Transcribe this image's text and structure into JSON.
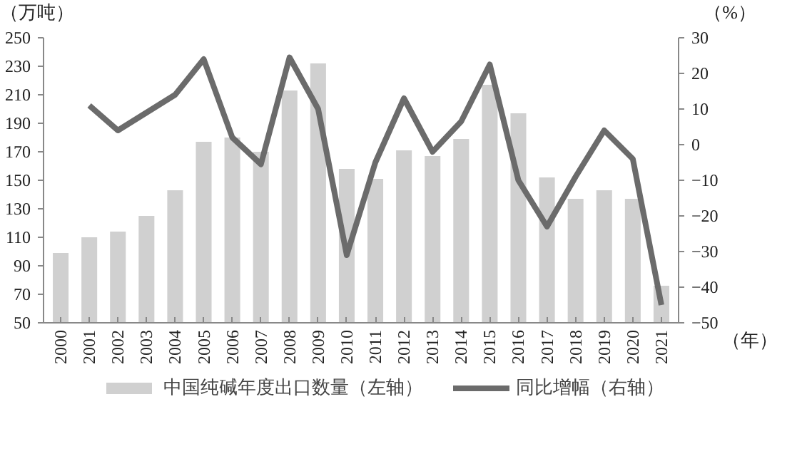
{
  "chart_data": {
    "type": "bar",
    "ylabel": "（万吨）",
    "y2label": "（%）",
    "xlabel": "（年）",
    "categories": [
      "2000",
      "2001",
      "2002",
      "2003",
      "2004",
      "2005",
      "2006",
      "2007",
      "2008",
      "2009",
      "2010",
      "2011",
      "2012",
      "2013",
      "2014",
      "2015",
      "2016",
      "2017",
      "2018",
      "2019",
      "2020",
      "2021"
    ],
    "series": [
      {
        "name": "中国纯碱年度出口数量（左轴）",
        "color": "#d0d0d0",
        "values": [
          99,
          110,
          114,
          125,
          143,
          177,
          180,
          170,
          213,
          232,
          158,
          151,
          171,
          167,
          179,
          217,
          197,
          152,
          137,
          143,
          137,
          76
        ]
      },
      {
        "name": "同比增幅（右轴）",
        "type": "line",
        "axis": "y2",
        "color": "#6b6b6b",
        "values": [
          null,
          11,
          4,
          9,
          14,
          24,
          2,
          -5.5,
          24.5,
          10,
          -31,
          -5,
          13,
          -2,
          6.5,
          22.5,
          -10,
          -23,
          -9,
          4,
          -4,
          -45
        ]
      }
    ],
    "ylim": [
      50,
      250
    ],
    "yticks": [
      50,
      70,
      90,
      110,
      130,
      150,
      170,
      190,
      210,
      230,
      250
    ],
    "y2lim": [
      -50,
      30
    ],
    "y2ticks": [
      -50,
      -40,
      -30,
      -20,
      -10,
      0,
      10,
      20,
      30
    ],
    "grid": false,
    "legend": "bottom"
  }
}
